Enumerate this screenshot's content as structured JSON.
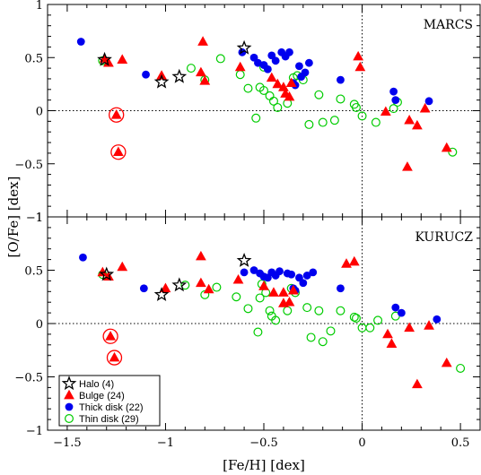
{
  "chart_data": {
    "type": "scatter",
    "xlabel": "[Fe/H] [dex]",
    "ylabel": "[O/Fe] [dex]",
    "xlim": [
      -1.6,
      0.6
    ],
    "x_ticks": [
      -1.5,
      -1,
      -0.5,
      0,
      0.5
    ],
    "x_tick_labels": [
      "−1.5",
      "−1",
      "−0.5",
      "0",
      "0.5"
    ],
    "y_ticks": [
      -1,
      -0.5,
      0,
      0.5,
      1
    ],
    "y_tick_labels": [
      "−1",
      "−0.5",
      "0",
      "0.5",
      "1"
    ],
    "grid": false,
    "reference_lines": {
      "x": 0,
      "y": 0,
      "style": "dotted"
    },
    "colors": {
      "halo": "#000000",
      "bulge": "#ff0000",
      "thick_disk": "#0000ee",
      "thin_disk": "#00cc00"
    },
    "legend": {
      "placement": "bottom-left",
      "entries": [
        {
          "key": "halo",
          "label": "Halo (4)",
          "marker": "open-star"
        },
        {
          "key": "bulge",
          "label": "Bulge (24)",
          "marker": "filled-triangle"
        },
        {
          "key": "thick_disk",
          "label": "Thick disk (22)",
          "marker": "filled-circle"
        },
        {
          "key": "thin_disk",
          "label": "Thin disk (29)",
          "marker": "open-circle"
        }
      ]
    },
    "panels": [
      {
        "label": "MARCS",
        "ylim": [
          -1,
          1
        ],
        "series": {
          "halo": [
            [
              -1.31,
              0.48
            ],
            [
              -1.02,
              0.27
            ],
            [
              -0.93,
              0.32
            ],
            [
              -0.6,
              0.59
            ]
          ],
          "bulge": [
            [
              -1.31,
              0.49
            ],
            [
              -1.29,
              0.45
            ],
            [
              -1.22,
              0.48
            ],
            [
              -1.25,
              -0.04
            ],
            [
              -1.24,
              -0.39
            ],
            [
              -1.02,
              0.33
            ],
            [
              -0.81,
              0.65
            ],
            [
              -0.82,
              0.36
            ],
            [
              -0.8,
              0.28
            ],
            [
              -0.62,
              0.41
            ],
            [
              -0.46,
              0.31
            ],
            [
              -0.43,
              0.25
            ],
            [
              -0.4,
              0.22
            ],
            [
              -0.39,
              0.16
            ],
            [
              -0.37,
              0.13
            ],
            [
              -0.36,
              0.26
            ],
            [
              -0.02,
              0.51
            ],
            [
              -0.01,
              0.41
            ],
            [
              0.12,
              -0.01
            ],
            [
              0.24,
              -0.09
            ],
            [
              0.28,
              -0.14
            ],
            [
              0.23,
              -0.53
            ],
            [
              0.32,
              0.02
            ],
            [
              0.43,
              -0.35
            ]
          ],
          "bulge_circled": [
            [
              -1.25,
              -0.04
            ],
            [
              -1.24,
              -0.39
            ]
          ],
          "thick_disk": [
            [
              -1.43,
              0.65
            ],
            [
              -1.1,
              0.34
            ],
            [
              -0.61,
              0.55
            ],
            [
              -0.55,
              0.5
            ],
            [
              -0.53,
              0.45
            ],
            [
              -0.5,
              0.43
            ],
            [
              -0.48,
              0.39
            ],
            [
              -0.46,
              0.52
            ],
            [
              -0.44,
              0.47
            ],
            [
              -0.41,
              0.55
            ],
            [
              -0.39,
              0.51
            ],
            [
              -0.37,
              0.55
            ],
            [
              -0.35,
              0.26
            ],
            [
              -0.34,
              0.24
            ],
            [
              -0.32,
              0.42
            ],
            [
              -0.31,
              0.32
            ],
            [
              -0.29,
              0.36
            ],
            [
              -0.27,
              0.45
            ],
            [
              -0.11,
              0.29
            ],
            [
              0.16,
              0.18
            ],
            [
              0.17,
              0.1
            ],
            [
              0.34,
              0.09
            ]
          ],
          "thin_disk": [
            [
              -1.32,
              0.47
            ],
            [
              -0.87,
              0.4
            ],
            [
              -0.8,
              0.29
            ],
            [
              -0.72,
              0.49
            ],
            [
              -0.62,
              0.34
            ],
            [
              -0.58,
              0.21
            ],
            [
              -0.54,
              -0.07
            ],
            [
              -0.52,
              0.22
            ],
            [
              -0.5,
              0.41
            ],
            [
              -0.5,
              0.19
            ],
            [
              -0.47,
              0.14
            ],
            [
              -0.45,
              0.09
            ],
            [
              -0.43,
              0.03
            ],
            [
              -0.38,
              0.07
            ],
            [
              -0.35,
              0.31
            ],
            [
              -0.33,
              0.33
            ],
            [
              -0.3,
              0.29
            ],
            [
              -0.27,
              -0.13
            ],
            [
              -0.22,
              0.15
            ],
            [
              -0.2,
              -0.11
            ],
            [
              -0.14,
              -0.09
            ],
            [
              -0.11,
              0.11
            ],
            [
              -0.04,
              0.06
            ],
            [
              -0.03,
              0.03
            ],
            [
              0.0,
              -0.05
            ],
            [
              0.07,
              -0.11
            ],
            [
              0.16,
              0.02
            ],
            [
              0.18,
              0.08
            ],
            [
              0.46,
              -0.39
            ]
          ]
        }
      },
      {
        "label": "KURUCZ",
        "ylim": [
          -1,
          1
        ],
        "series": {
          "halo": [
            [
              -1.3,
              0.46
            ],
            [
              -1.02,
              0.27
            ],
            [
              -0.93,
              0.36
            ],
            [
              -0.6,
              0.59
            ]
          ],
          "bulge": [
            [
              -1.32,
              0.48
            ],
            [
              -1.29,
              0.44
            ],
            [
              -1.22,
              0.53
            ],
            [
              -1.28,
              -0.12
            ],
            [
              -1.26,
              -0.32
            ],
            [
              -1.0,
              0.33
            ],
            [
              -0.82,
              0.63
            ],
            [
              -0.82,
              0.38
            ],
            [
              -0.78,
              0.32
            ],
            [
              -0.63,
              0.41
            ],
            [
              -0.5,
              0.35
            ],
            [
              -0.45,
              0.29
            ],
            [
              -0.4,
              0.29
            ],
            [
              -0.4,
              0.19
            ],
            [
              -0.37,
              0.2
            ],
            [
              -0.35,
              0.31
            ],
            [
              -0.08,
              0.56
            ],
            [
              -0.04,
              0.58
            ],
            [
              0.13,
              -0.1
            ],
            [
              0.15,
              -0.19
            ],
            [
              0.24,
              -0.04
            ],
            [
              0.28,
              -0.57
            ],
            [
              0.34,
              -0.02
            ],
            [
              0.43,
              -0.37
            ]
          ],
          "bulge_circled": [
            [
              -1.28,
              -0.12
            ],
            [
              -1.26,
              -0.32
            ]
          ],
          "thick_disk": [
            [
              -1.42,
              0.62
            ],
            [
              -1.11,
              0.33
            ],
            [
              -0.6,
              0.48
            ],
            [
              -0.55,
              0.5
            ],
            [
              -0.52,
              0.47
            ],
            [
              -0.5,
              0.44
            ],
            [
              -0.48,
              0.43
            ],
            [
              -0.46,
              0.48
            ],
            [
              -0.44,
              0.45
            ],
            [
              -0.42,
              0.49
            ],
            [
              -0.38,
              0.47
            ],
            [
              -0.36,
              0.46
            ],
            [
              -0.35,
              0.33
            ],
            [
              -0.34,
              0.31
            ],
            [
              -0.32,
              0.43
            ],
            [
              -0.3,
              0.38
            ],
            [
              -0.28,
              0.45
            ],
            [
              -0.25,
              0.48
            ],
            [
              -0.11,
              0.33
            ],
            [
              0.17,
              0.15
            ],
            [
              0.2,
              0.1
            ],
            [
              0.38,
              0.04
            ]
          ],
          "thin_disk": [
            [
              -1.32,
              0.46
            ],
            [
              -0.9,
              0.36
            ],
            [
              -0.8,
              0.27
            ],
            [
              -0.74,
              0.34
            ],
            [
              -0.64,
              0.25
            ],
            [
              -0.58,
              0.14
            ],
            [
              -0.53,
              -0.08
            ],
            [
              -0.52,
              0.24
            ],
            [
              -0.51,
              0.37
            ],
            [
              -0.49,
              0.29
            ],
            [
              -0.47,
              0.12
            ],
            [
              -0.46,
              0.07
            ],
            [
              -0.44,
              0.03
            ],
            [
              -0.38,
              0.12
            ],
            [
              -0.36,
              0.33
            ],
            [
              -0.34,
              0.29
            ],
            [
              -0.28,
              0.15
            ],
            [
              -0.26,
              -0.13
            ],
            [
              -0.22,
              0.12
            ],
            [
              -0.2,
              -0.17
            ],
            [
              -0.16,
              -0.07
            ],
            [
              -0.11,
              0.12
            ],
            [
              -0.04,
              0.06
            ],
            [
              -0.03,
              0.05
            ],
            [
              0.0,
              -0.04
            ],
            [
              0.04,
              -0.04
            ],
            [
              0.08,
              0.03
            ],
            [
              0.17,
              0.07
            ],
            [
              0.5,
              -0.42
            ]
          ]
        }
      }
    ]
  }
}
